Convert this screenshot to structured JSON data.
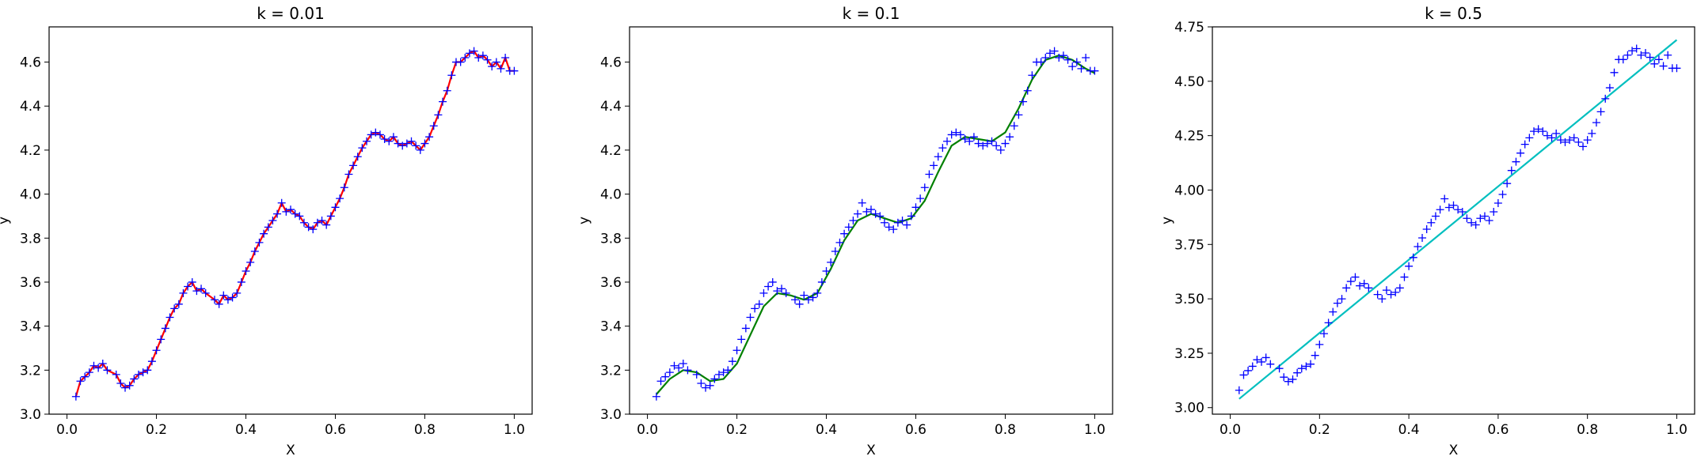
{
  "chart_data": [
    {
      "type": "scatter",
      "title": "k = 0.01",
      "xlabel": "X",
      "ylabel": "y",
      "xlim": [
        -0.04,
        1.04
      ],
      "ylim": [
        3.0,
        4.76
      ],
      "xticks": [
        "0.0",
        "0.2",
        "0.4",
        "0.6",
        "0.8",
        "1.0"
      ],
      "yticks": [
        "3.0",
        "3.2",
        "3.4",
        "3.6",
        "3.8",
        "4.0",
        "4.2",
        "4.4",
        "4.6"
      ],
      "grid": false,
      "colors": {
        "points": "#0000ff",
        "fit": "#ff0000"
      },
      "fit_line": "jagged",
      "x": [
        0.02,
        0.03,
        0.04,
        0.05,
        0.06,
        0.07,
        0.08,
        0.09,
        0.11,
        0.12,
        0.13,
        0.14,
        0.15,
        0.16,
        0.17,
        0.18,
        0.19,
        0.2,
        0.21,
        0.22,
        0.23,
        0.24,
        0.25,
        0.26,
        0.27,
        0.28,
        0.29,
        0.3,
        0.31,
        0.33,
        0.34,
        0.35,
        0.36,
        0.37,
        0.38,
        0.39,
        0.4,
        0.41,
        0.42,
        0.43,
        0.44,
        0.45,
        0.46,
        0.47,
        0.48,
        0.49,
        0.5,
        0.51,
        0.52,
        0.53,
        0.54,
        0.55,
        0.56,
        0.57,
        0.58,
        0.59,
        0.6,
        0.61,
        0.62,
        0.63,
        0.64,
        0.65,
        0.66,
        0.67,
        0.68,
        0.69,
        0.7,
        0.71,
        0.72,
        0.73,
        0.74,
        0.75,
        0.76,
        0.77,
        0.78,
        0.79,
        0.8,
        0.81,
        0.82,
        0.83,
        0.84,
        0.85,
        0.86,
        0.87,
        0.88,
        0.89,
        0.9,
        0.91,
        0.92,
        0.93,
        0.94,
        0.95,
        0.96,
        0.97,
        0.98,
        0.99,
        1.0
      ],
      "y": [
        3.08,
        3.15,
        3.17,
        3.19,
        3.22,
        3.21,
        3.23,
        3.2,
        3.18,
        3.14,
        3.12,
        3.13,
        3.16,
        3.18,
        3.19,
        3.2,
        3.24,
        3.29,
        3.34,
        3.39,
        3.44,
        3.48,
        3.5,
        3.55,
        3.58,
        3.6,
        3.56,
        3.57,
        3.55,
        3.52,
        3.5,
        3.54,
        3.52,
        3.53,
        3.55,
        3.6,
        3.65,
        3.69,
        3.74,
        3.78,
        3.82,
        3.85,
        3.88,
        3.91,
        3.96,
        3.92,
        3.93,
        3.91,
        3.9,
        3.87,
        3.85,
        3.84,
        3.87,
        3.88,
        3.86,
        3.9,
        3.94,
        3.98,
        4.03,
        4.09,
        4.13,
        4.17,
        4.21,
        4.24,
        4.27,
        4.28,
        4.27,
        4.25,
        4.24,
        4.26,
        4.23,
        4.22,
        4.23,
        4.24,
        4.22,
        4.2,
        4.23,
        4.26,
        4.31,
        4.36,
        4.42,
        4.47,
        4.54,
        4.6,
        4.6,
        4.62,
        4.64,
        4.65,
        4.62,
        4.63,
        4.61,
        4.58,
        4.6,
        4.57,
        4.62,
        4.56,
        4.56
      ]
    },
    {
      "type": "scatter",
      "title": "k = 0.1",
      "xlabel": "X",
      "ylabel": "y",
      "xlim": [
        -0.04,
        1.04
      ],
      "ylim": [
        3.0,
        4.76
      ],
      "xticks": [
        "0.0",
        "0.2",
        "0.4",
        "0.6",
        "0.8",
        "1.0"
      ],
      "yticks": [
        "3.0",
        "3.2",
        "3.4",
        "3.6",
        "3.8",
        "4.0",
        "4.2",
        "4.4",
        "4.6"
      ],
      "grid": false,
      "colors": {
        "points": "#0000ff",
        "fit": "#008000"
      },
      "fit_line": "smooth",
      "x": [
        0.02,
        0.03,
        0.04,
        0.05,
        0.06,
        0.07,
        0.08,
        0.09,
        0.11,
        0.12,
        0.13,
        0.14,
        0.15,
        0.16,
        0.17,
        0.18,
        0.19,
        0.2,
        0.21,
        0.22,
        0.23,
        0.24,
        0.25,
        0.26,
        0.27,
        0.28,
        0.29,
        0.3,
        0.31,
        0.33,
        0.34,
        0.35,
        0.36,
        0.37,
        0.38,
        0.39,
        0.4,
        0.41,
        0.42,
        0.43,
        0.44,
        0.45,
        0.46,
        0.47,
        0.48,
        0.49,
        0.5,
        0.51,
        0.52,
        0.53,
        0.54,
        0.55,
        0.56,
        0.57,
        0.58,
        0.59,
        0.6,
        0.61,
        0.62,
        0.63,
        0.64,
        0.65,
        0.66,
        0.67,
        0.68,
        0.69,
        0.7,
        0.71,
        0.72,
        0.73,
        0.74,
        0.75,
        0.76,
        0.77,
        0.78,
        0.79,
        0.8,
        0.81,
        0.82,
        0.83,
        0.84,
        0.85,
        0.86,
        0.87,
        0.88,
        0.89,
        0.9,
        0.91,
        0.92,
        0.93,
        0.94,
        0.95,
        0.96,
        0.97,
        0.98,
        0.99,
        1.0
      ],
      "y": [
        3.08,
        3.15,
        3.17,
        3.19,
        3.22,
        3.21,
        3.23,
        3.2,
        3.18,
        3.14,
        3.12,
        3.13,
        3.16,
        3.18,
        3.19,
        3.2,
        3.24,
        3.29,
        3.34,
        3.39,
        3.44,
        3.48,
        3.5,
        3.55,
        3.58,
        3.6,
        3.56,
        3.57,
        3.55,
        3.52,
        3.5,
        3.54,
        3.52,
        3.53,
        3.55,
        3.6,
        3.65,
        3.69,
        3.74,
        3.78,
        3.82,
        3.85,
        3.88,
        3.91,
        3.96,
        3.92,
        3.93,
        3.91,
        3.9,
        3.87,
        3.85,
        3.84,
        3.87,
        3.88,
        3.86,
        3.9,
        3.94,
        3.98,
        4.03,
        4.09,
        4.13,
        4.17,
        4.21,
        4.24,
        4.27,
        4.28,
        4.27,
        4.25,
        4.24,
        4.26,
        4.23,
        4.22,
        4.23,
        4.24,
        4.22,
        4.2,
        4.23,
        4.26,
        4.31,
        4.36,
        4.42,
        4.47,
        4.54,
        4.6,
        4.6,
        4.62,
        4.64,
        4.65,
        4.62,
        4.63,
        4.61,
        4.58,
        4.6,
        4.57,
        4.62,
        4.56,
        4.56
      ],
      "fit_x": [
        0.02,
        0.05,
        0.08,
        0.11,
        0.14,
        0.17,
        0.2,
        0.23,
        0.26,
        0.29,
        0.32,
        0.35,
        0.38,
        0.41,
        0.44,
        0.47,
        0.5,
        0.53,
        0.56,
        0.59,
        0.62,
        0.65,
        0.68,
        0.71,
        0.74,
        0.77,
        0.8,
        0.83,
        0.86,
        0.89,
        0.92,
        0.95,
        0.98,
        1.0
      ],
      "fit_y": [
        3.09,
        3.16,
        3.2,
        3.19,
        3.15,
        3.16,
        3.23,
        3.36,
        3.49,
        3.55,
        3.54,
        3.52,
        3.55,
        3.66,
        3.79,
        3.88,
        3.91,
        3.89,
        3.87,
        3.89,
        3.97,
        4.1,
        4.22,
        4.26,
        4.25,
        4.24,
        4.28,
        4.39,
        4.52,
        4.61,
        4.63,
        4.61,
        4.57,
        4.55
      ]
    },
    {
      "type": "scatter",
      "title": "k = 0.5",
      "xlabel": "X",
      "ylabel": "y",
      "xlim": [
        -0.04,
        1.04
      ],
      "ylim": [
        2.97,
        4.75
      ],
      "xticks": [
        "0.0",
        "0.2",
        "0.4",
        "0.6",
        "0.8",
        "1.0"
      ],
      "yticks": [
        "3.00",
        "3.25",
        "3.50",
        "3.75",
        "4.00",
        "4.25",
        "4.50",
        "4.75"
      ],
      "grid": false,
      "colors": {
        "points": "#0000ff",
        "fit": "#00bfbf"
      },
      "fit_line": "straight",
      "x": [
        0.02,
        0.03,
        0.04,
        0.05,
        0.06,
        0.07,
        0.08,
        0.09,
        0.11,
        0.12,
        0.13,
        0.14,
        0.15,
        0.16,
        0.17,
        0.18,
        0.19,
        0.2,
        0.21,
        0.22,
        0.23,
        0.24,
        0.25,
        0.26,
        0.27,
        0.28,
        0.29,
        0.3,
        0.31,
        0.33,
        0.34,
        0.35,
        0.36,
        0.37,
        0.38,
        0.39,
        0.4,
        0.41,
        0.42,
        0.43,
        0.44,
        0.45,
        0.46,
        0.47,
        0.48,
        0.49,
        0.5,
        0.51,
        0.52,
        0.53,
        0.54,
        0.55,
        0.56,
        0.57,
        0.58,
        0.59,
        0.6,
        0.61,
        0.62,
        0.63,
        0.64,
        0.65,
        0.66,
        0.67,
        0.68,
        0.69,
        0.7,
        0.71,
        0.72,
        0.73,
        0.74,
        0.75,
        0.76,
        0.77,
        0.78,
        0.79,
        0.8,
        0.81,
        0.82,
        0.83,
        0.84,
        0.85,
        0.86,
        0.87,
        0.88,
        0.89,
        0.9,
        0.91,
        0.92,
        0.93,
        0.94,
        0.95,
        0.96,
        0.97,
        0.98,
        0.99,
        1.0
      ],
      "y": [
        3.08,
        3.15,
        3.17,
        3.19,
        3.22,
        3.21,
        3.23,
        3.2,
        3.18,
        3.14,
        3.12,
        3.13,
        3.16,
        3.18,
        3.19,
        3.2,
        3.24,
        3.29,
        3.34,
        3.39,
        3.44,
        3.48,
        3.5,
        3.55,
        3.58,
        3.6,
        3.56,
        3.57,
        3.55,
        3.52,
        3.5,
        3.54,
        3.52,
        3.53,
        3.55,
        3.6,
        3.65,
        3.69,
        3.74,
        3.78,
        3.82,
        3.85,
        3.88,
        3.91,
        3.96,
        3.92,
        3.93,
        3.91,
        3.9,
        3.87,
        3.85,
        3.84,
        3.87,
        3.88,
        3.86,
        3.9,
        3.94,
        3.98,
        4.03,
        4.09,
        4.13,
        4.17,
        4.21,
        4.24,
        4.27,
        4.28,
        4.27,
        4.25,
        4.24,
        4.26,
        4.23,
        4.22,
        4.23,
        4.24,
        4.22,
        4.2,
        4.23,
        4.26,
        4.31,
        4.36,
        4.42,
        4.47,
        4.54,
        4.6,
        4.6,
        4.62,
        4.64,
        4.65,
        4.62,
        4.63,
        4.61,
        4.58,
        4.6,
        4.57,
        4.62,
        4.56,
        4.56
      ],
      "fit_x": [
        0.02,
        1.0
      ],
      "fit_y": [
        3.04,
        4.69
      ]
    }
  ]
}
